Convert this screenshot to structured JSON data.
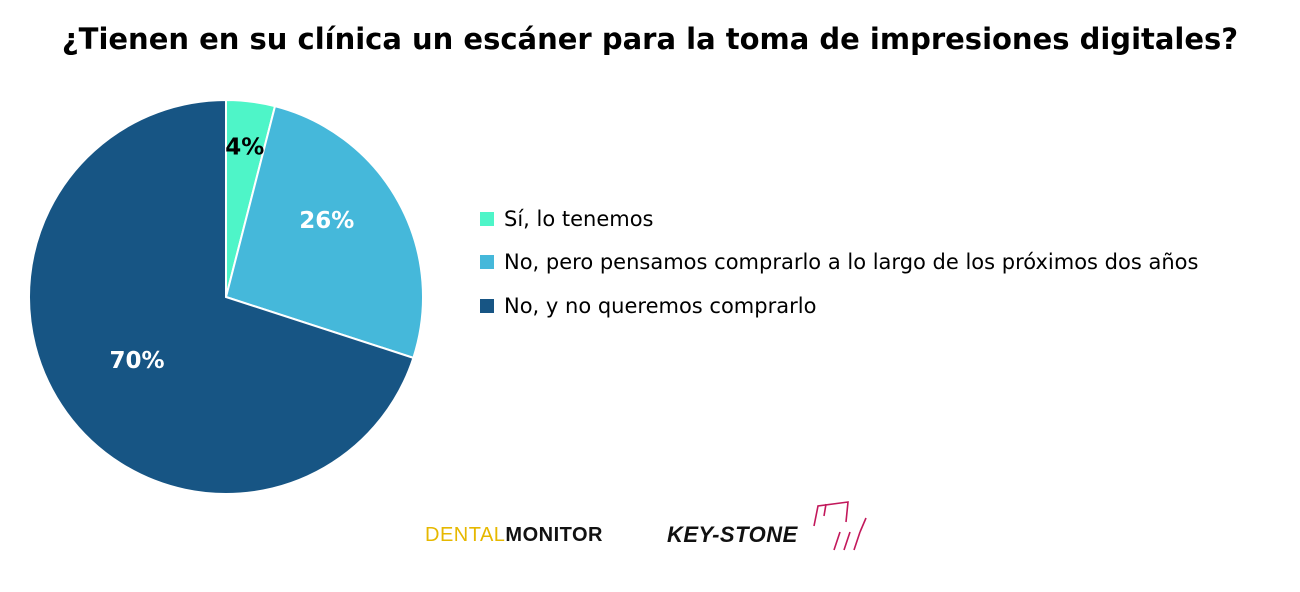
{
  "title": "¿Tienen en su clínica un escáner para la toma de impresiones digitales?",
  "chart_data": {
    "type": "pie",
    "title": "¿Tienen en su clínica un escáner para la toma de impresiones digitales?",
    "categories": [
      "Sí, lo tenemos",
      "No, pero pensamos comprarlo a lo largo de los próximos dos años",
      "No, y no queremos comprarlo"
    ],
    "values": [
      4,
      26,
      70
    ],
    "data_labels": [
      "4%",
      "26%",
      "70%"
    ],
    "colors": [
      "#4ef5c8",
      "#45b8da",
      "#175584"
    ],
    "label_colors": [
      "#000000",
      "#ffffff",
      "#ffffff"
    ],
    "legend_position": "right"
  },
  "logos": {
    "dental_part1": "DENTAL",
    "dental_part2": "MONITOR",
    "keystone": "KEY-STONE"
  }
}
